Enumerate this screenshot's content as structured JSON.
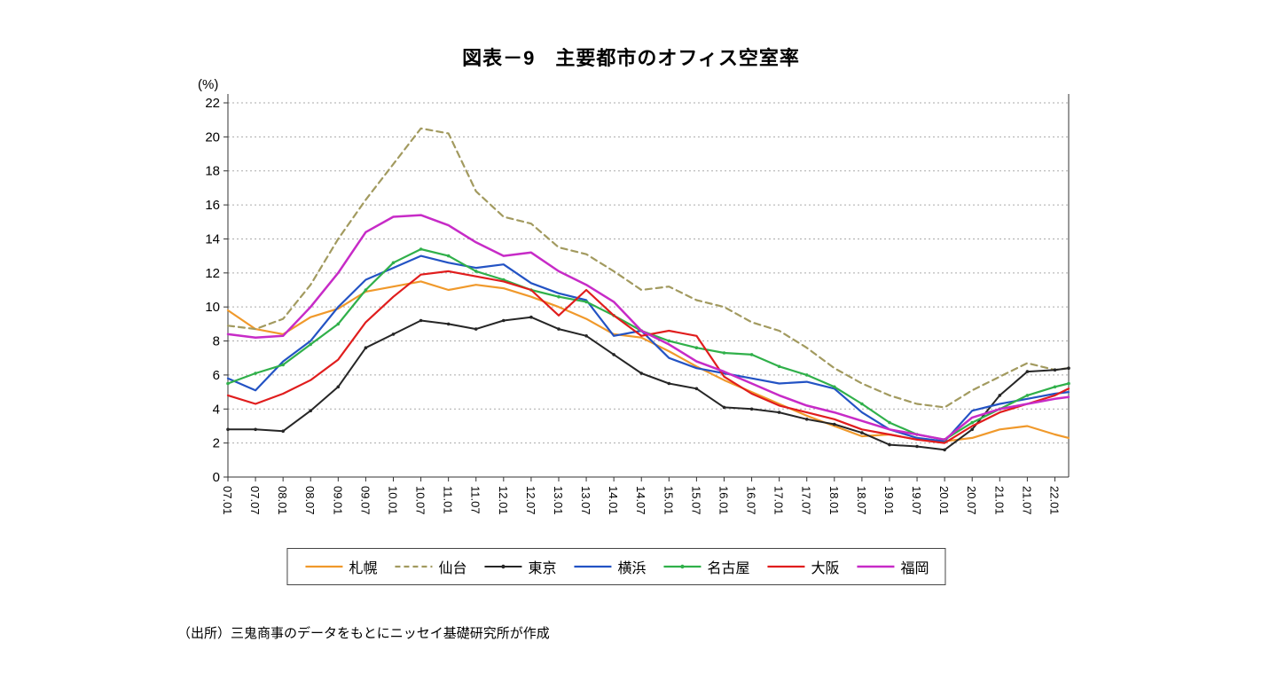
{
  "source": "（出所）三鬼商事のデータをもとにニッセイ基礎研究所が作成",
  "chart_data": {
    "type": "line",
    "title": "図表－9　主要都市のオフィス空室率",
    "unit_label": "(%)",
    "xlabel": "",
    "ylabel": "",
    "ylim": [
      0,
      22
    ],
    "y_ticks": [
      0,
      2,
      4,
      6,
      8,
      10,
      12,
      14,
      16,
      18,
      20,
      22
    ],
    "grid": true,
    "legend_position": "bottom",
    "x_tick_labels": [
      "07.01",
      "07.07",
      "08.01",
      "08.07",
      "09.01",
      "09.07",
      "10.01",
      "10.07",
      "11.01",
      "11.07",
      "12.01",
      "12.07",
      "13.01",
      "13.07",
      "14.01",
      "14.07",
      "15.01",
      "15.07",
      "16.01",
      "16.07",
      "17.01",
      "17.07",
      "18.01",
      "18.07",
      "19.01",
      "19.07",
      "20.01",
      "20.07",
      "21.01",
      "21.07",
      "22.01"
    ],
    "x": [
      "07.01",
      "07.07",
      "08.01",
      "08.07",
      "09.01",
      "09.07",
      "10.01",
      "10.07",
      "11.01",
      "11.07",
      "12.01",
      "12.07",
      "13.01",
      "13.07",
      "14.01",
      "14.07",
      "15.01",
      "15.07",
      "16.01",
      "16.07",
      "17.01",
      "17.07",
      "18.01",
      "18.07",
      "19.01",
      "19.07",
      "20.01",
      "20.07",
      "21.01",
      "21.07",
      "22.01",
      "22.04"
    ],
    "x_months": [
      0,
      6,
      12,
      18,
      24,
      30,
      36,
      42,
      48,
      54,
      60,
      66,
      72,
      78,
      84,
      90,
      96,
      102,
      108,
      114,
      120,
      126,
      132,
      138,
      144,
      150,
      156,
      162,
      168,
      174,
      180,
      183
    ],
    "series": [
      {
        "name": "札幌",
        "color": "#F0992B",
        "dash": null,
        "marker": false,
        "width": 2.2,
        "values": [
          9.8,
          8.7,
          8.4,
          9.4,
          9.9,
          10.9,
          11.2,
          11.5,
          11.0,
          11.3,
          11.1,
          10.6,
          10.0,
          9.3,
          8.4,
          8.2,
          7.4,
          6.5,
          5.7,
          5.0,
          4.3,
          3.6,
          3.0,
          2.4,
          2.5,
          2.2,
          2.1,
          2.3,
          2.8,
          3.0,
          2.5,
          2.3
        ]
      },
      {
        "name": "仙台",
        "color": "#A29A5F",
        "dash": "7 5",
        "marker": false,
        "width": 2.2,
        "values": [
          8.9,
          8.7,
          9.3,
          11.3,
          14.0,
          16.3,
          18.4,
          20.5,
          20.2,
          16.8,
          15.3,
          14.9,
          13.5,
          13.1,
          12.1,
          11.0,
          11.2,
          10.4,
          10.0,
          9.1,
          8.6,
          7.6,
          6.4,
          5.5,
          4.8,
          4.3,
          4.1,
          5.1,
          5.9,
          6.7,
          6.3,
          6.4
        ]
      },
      {
        "name": "東京",
        "color": "#262626",
        "dash": null,
        "marker": true,
        "width": 2.0,
        "values": [
          2.8,
          2.8,
          2.7,
          3.9,
          5.3,
          7.6,
          8.4,
          9.2,
          9.0,
          8.7,
          9.2,
          9.4,
          8.7,
          8.3,
          7.2,
          6.1,
          5.5,
          5.2,
          4.1,
          4.0,
          3.8,
          3.4,
          3.1,
          2.6,
          1.9,
          1.8,
          1.6,
          2.8,
          4.8,
          6.2,
          6.3,
          6.4
        ]
      },
      {
        "name": "横浜",
        "color": "#2353C4",
        "dash": null,
        "marker": false,
        "width": 2.2,
        "values": [
          5.8,
          5.1,
          6.8,
          8.0,
          10.0,
          11.6,
          12.3,
          13.0,
          12.6,
          12.3,
          12.5,
          11.4,
          10.8,
          10.4,
          8.3,
          8.6,
          7.0,
          6.4,
          6.1,
          5.8,
          5.5,
          5.6,
          5.2,
          3.8,
          2.8,
          2.3,
          2.1,
          3.9,
          4.3,
          4.6,
          4.9,
          5.0
        ]
      },
      {
        "name": "名古屋",
        "color": "#30B04A",
        "dash": null,
        "marker": true,
        "width": 2.2,
        "values": [
          5.5,
          6.1,
          6.6,
          7.8,
          9.0,
          11.0,
          12.6,
          13.4,
          13.0,
          12.1,
          11.6,
          11.0,
          10.6,
          10.3,
          9.5,
          8.6,
          8.0,
          7.6,
          7.3,
          7.2,
          6.5,
          6.0,
          5.3,
          4.3,
          3.2,
          2.5,
          2.2,
          3.2,
          4.0,
          4.8,
          5.3,
          5.5
        ]
      },
      {
        "name": "大阪",
        "color": "#E01D1D",
        "dash": null,
        "marker": false,
        "width": 2.2,
        "values": [
          4.8,
          4.3,
          4.9,
          5.7,
          6.9,
          9.1,
          10.6,
          11.9,
          12.1,
          11.8,
          11.5,
          11.0,
          9.5,
          11.0,
          9.5,
          8.3,
          8.6,
          8.3,
          5.9,
          4.9,
          4.2,
          3.8,
          3.4,
          2.8,
          2.5,
          2.2,
          2.0,
          3.0,
          3.8,
          4.3,
          4.8,
          5.2
        ]
      },
      {
        "name": "福岡",
        "color": "#C72BC7",
        "dash": null,
        "marker": false,
        "width": 2.5,
        "values": [
          8.4,
          8.2,
          8.3,
          10.0,
          12.0,
          14.4,
          15.3,
          15.4,
          14.8,
          13.8,
          13.0,
          13.2,
          12.1,
          11.3,
          10.3,
          8.6,
          7.8,
          6.8,
          6.2,
          5.5,
          4.8,
          4.2,
          3.8,
          3.3,
          2.8,
          2.5,
          2.2,
          3.5,
          4.0,
          4.3,
          4.6,
          4.7
        ]
      }
    ]
  }
}
